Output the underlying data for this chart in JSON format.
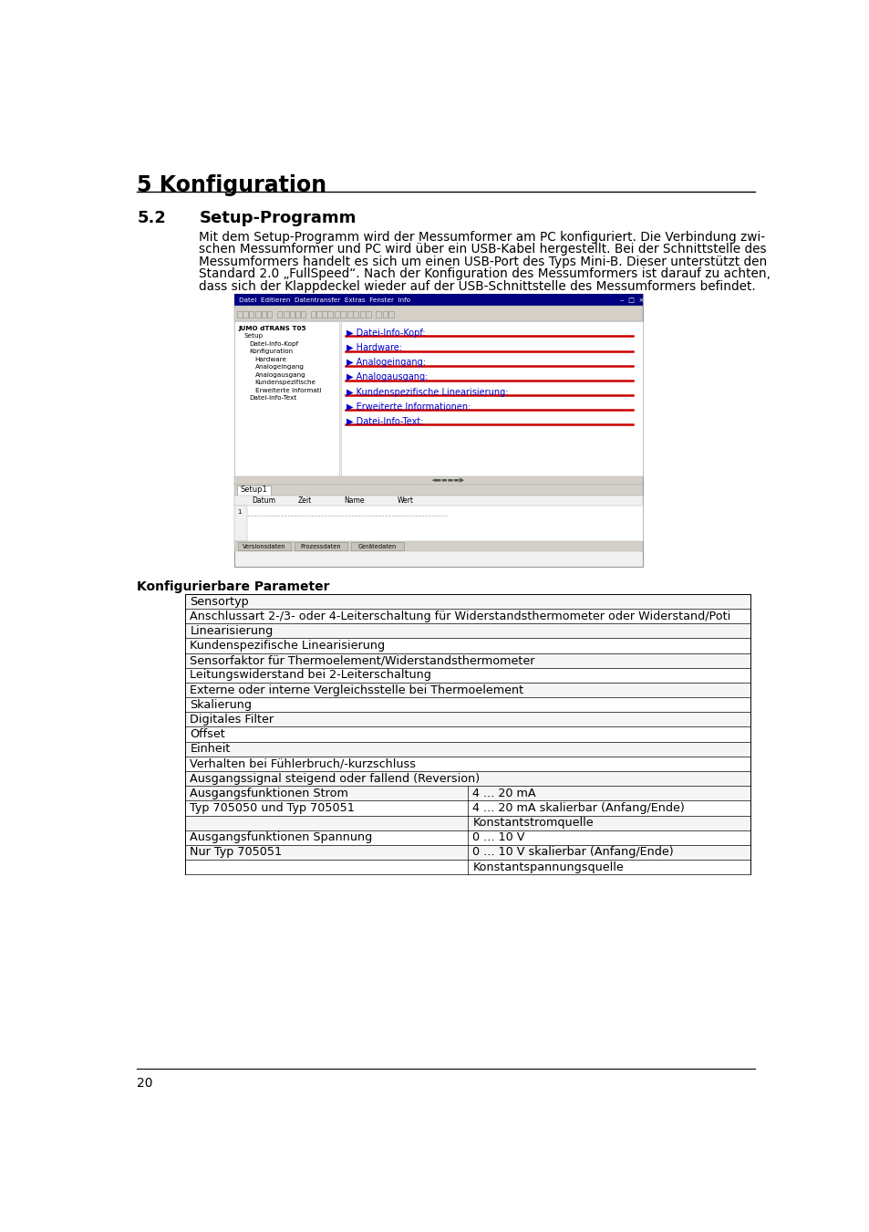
{
  "page_title": "5 Konfiguration",
  "section_num": "5.2",
  "section_title": "Setup-Programm",
  "body_lines": [
    "Mit dem Setup-Programm wird der Messumformer am PC konfiguriert. Die Verbindung zwi-",
    "schen Messumformer und PC wird über ein USB-Kabel hergestellt. Bei der Schnittstelle des",
    "Messumformers handelt es sich um einen USB-Port des Typs Mini-B. Dieser unterstützt den",
    "Standard 2.0 „FullSpeed“. Nach der Konfiguration des Messumformers ist darauf zu achten,",
    "dass sich der Klappdeckel wieder auf der USB-Schnittstelle des Messumformers befindet."
  ],
  "konfig_header": "Konfigurierbare Parameter",
  "table_rows_single": [
    "Sensortyp",
    "Anschlussart 2-/3- oder 4-Leiterschaltung für Widerstandsthermometer oder Widerstand/Poti",
    "Linearisierung",
    "Kundenspezifische Linearisierung",
    "Sensorfaktor für Thermoelement/Widerstandsthermometer",
    "Leitungswiderstand bei 2-Leiterschaltung",
    "Externe oder interne Vergleichsstelle bei Thermoelement",
    "Skalierung",
    "Digitales Filter",
    "Offset",
    "Einheit",
    "Verhalten bei Fühlerbruch/-kurzschluss",
    "Ausgangssignal steigend oder fallend (Reversion)"
  ],
  "table_rows_double": [
    [
      "Ausgangsfunktionen Strom",
      "4 ... 20 mA"
    ],
    [
      "Typ 705050 und Typ 705051",
      "4 ... 20 mA skalierbar (Anfang/Ende)"
    ],
    [
      "",
      "Konstantstromquelle"
    ],
    [
      "Ausgangsfunktionen Spannung",
      "0 ... 10 V"
    ],
    [
      "Nur Typ 705051",
      "0 ... 10 V skalierbar (Anfang/Ende)"
    ],
    [
      "",
      "Konstantspannungsquelle"
    ]
  ],
  "page_num": "20",
  "bg_color": "#ffffff",
  "screenshot_items_right": [
    "Datei-Info-Kopf:",
    "Hardware:",
    "Analogeingang:",
    "Analogausgang:",
    "Kundenspezifische Linearisierung:",
    "Erweiterte Informationen:",
    "Datei-Info-Text:"
  ],
  "screenshot_tree": [
    [
      0,
      "JUMO dTRANS T05"
    ],
    [
      8,
      "Setup"
    ],
    [
      16,
      "Datei-Info-Kopf"
    ],
    [
      16,
      "Konfiguration"
    ],
    [
      24,
      "Hardware"
    ],
    [
      24,
      "Analogeingang"
    ],
    [
      24,
      "Analogausgang"
    ],
    [
      24,
      "Kundenspezifische"
    ],
    [
      24,
      "Erweiterte Informati"
    ],
    [
      16,
      "Datei-Info-Text"
    ]
  ]
}
